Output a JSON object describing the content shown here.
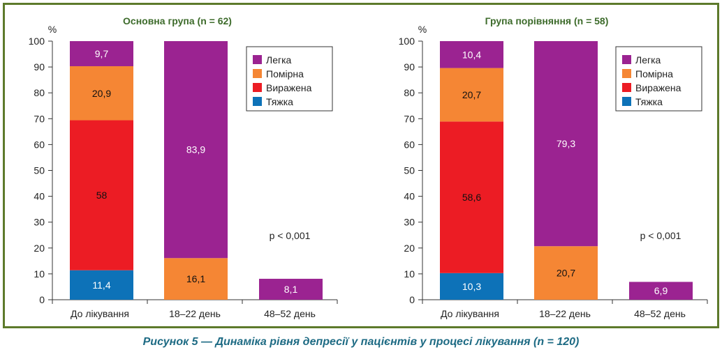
{
  "caption": "Рисунок 5 — Динаміка рівня депресії у пацієнтів у процесі лікування (n = 120)",
  "colors": {
    "frame": "#5d7a2b",
    "title": "#3d6b2b",
    "legka": "#9b2391",
    "pomirna": "#f58634",
    "vyrazhena": "#ec1c24",
    "tyazhka": "#0d72b8"
  },
  "chart_data": [
    {
      "type": "bar",
      "stacked": true,
      "title": "Основна група (n = 62)",
      "ylabel": "%",
      "ylim": [
        0,
        100
      ],
      "yticks": [
        "0",
        "10",
        "20",
        "30",
        "40",
        "50",
        "60",
        "70",
        "80",
        "90",
        "100"
      ],
      "categories": [
        "До лікування",
        "18–22 день",
        "48–52 день"
      ],
      "series": [
        {
          "name": "Тяжка",
          "color": "#0d72b8",
          "values": [
            11.4,
            0,
            0
          ],
          "labels": [
            "11,4",
            "",
            ""
          ]
        },
        {
          "name": "Виражена",
          "color": "#ec1c24",
          "values": [
            58,
            0,
            0
          ],
          "labels": [
            "58",
            "",
            ""
          ]
        },
        {
          "name": "Помірна",
          "color": "#f58634",
          "values": [
            20.9,
            16.1,
            0
          ],
          "labels": [
            "20,9",
            "16,1",
            ""
          ]
        },
        {
          "name": "Легка",
          "color": "#9b2391",
          "values": [
            9.7,
            83.9,
            8.1
          ],
          "labels": [
            "9,7",
            "83,9",
            "8,1"
          ]
        }
      ],
      "annotation": "p < 0,001",
      "legend_position": "top-right"
    },
    {
      "type": "bar",
      "stacked": true,
      "title": "Група порівняння (n = 58)",
      "ylabel": "%",
      "ylim": [
        0,
        100
      ],
      "yticks": [
        "0",
        "10",
        "20",
        "30",
        "40",
        "50",
        "60",
        "70",
        "80",
        "90",
        "100"
      ],
      "categories": [
        "До лікування",
        "18–22 день",
        "48–52 день"
      ],
      "series": [
        {
          "name": "Тяжка",
          "color": "#0d72b8",
          "values": [
            10.3,
            0,
            0
          ],
          "labels": [
            "10,3",
            "",
            ""
          ]
        },
        {
          "name": "Виражена",
          "color": "#ec1c24",
          "values": [
            58.6,
            0,
            0
          ],
          "labels": [
            "58,6",
            "",
            ""
          ]
        },
        {
          "name": "Помірна",
          "color": "#f58634",
          "values": [
            20.7,
            20.7,
            0
          ],
          "labels": [
            "20,7",
            "20,7",
            ""
          ]
        },
        {
          "name": "Легка",
          "color": "#9b2391",
          "values": [
            10.4,
            79.3,
            6.9
          ],
          "labels": [
            "10,4",
            "79,3",
            "6,9"
          ]
        }
      ],
      "annotation": "p < 0,001",
      "legend_position": "top-right"
    }
  ],
  "legend_order": [
    "Легка",
    "Помірна",
    "Виражена",
    "Тяжка"
  ]
}
